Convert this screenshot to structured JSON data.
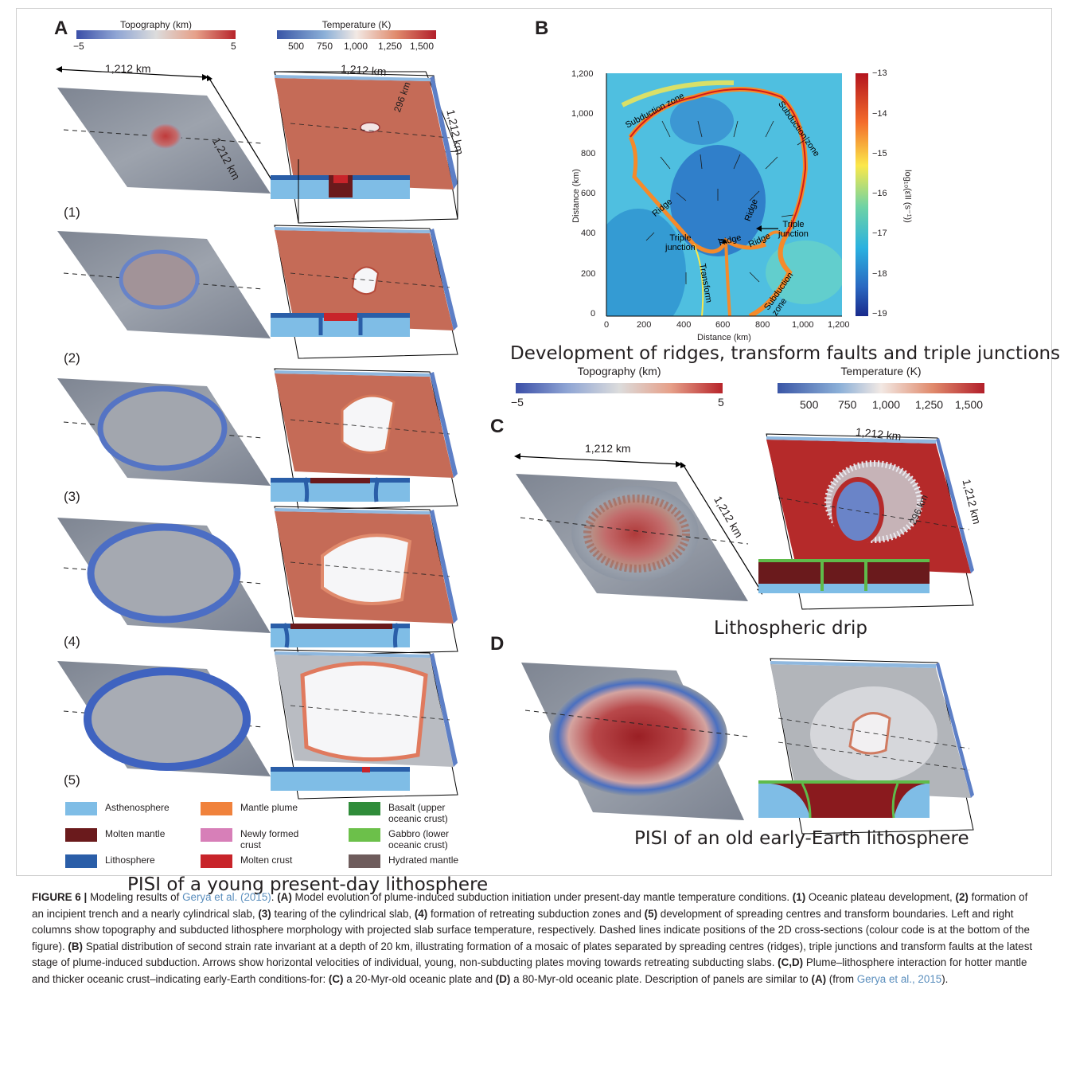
{
  "panels": {
    "A": {
      "letter": "A",
      "topo_bar": {
        "title": "Topography (km)",
        "min_label": "−5",
        "max_label": "5"
      },
      "temp_bar": {
        "title": "Temperature (K)",
        "ticks": [
          "500",
          "750",
          "1,000",
          "1,250",
          "1,500"
        ]
      },
      "dim_width": "1,212 km",
      "dim_depth": "1,212 km",
      "box_dim_width": "1,212 km",
      "box_dim_depth": "1,212 km",
      "box_dim_height": "296 km",
      "stages": [
        "(1)",
        "(2)",
        "(3)",
        "(4)",
        "(5)"
      ],
      "caption": "PISI of a young present-day lithosphere"
    },
    "B": {
      "letter": "B",
      "y_axis_label": "Distance (km)",
      "x_axis_label": "Distance (km)",
      "x_ticks": [
        "0",
        "200",
        "400",
        "600",
        "800",
        "1,000",
        "1,200"
      ],
      "y_ticks": [
        "0",
        "200",
        "400",
        "600",
        "800",
        "1,000",
        "1,200"
      ],
      "colorbar_ticks": [
        "−13",
        "−14",
        "−15",
        "−16",
        "−17",
        "−18",
        "−19"
      ],
      "colorbar_label": "log₁₀(ε̇II (s⁻¹))",
      "annotations": {
        "subduction_nw": "Subduction zone",
        "subduction_ne": "Subduction zone",
        "ridge_w": "Ridge",
        "ridge_e": "Ridge",
        "ridge_c1": "Ridge",
        "ridge_c2": "Ridge",
        "triple_1": "Triple\njunction",
        "triple_2": "Triple\njunction",
        "transform": "Transform",
        "subduction_s": "Subduction\nzone"
      },
      "caption": "Development of ridges, transform faults and triple junctions"
    },
    "C": {
      "letter": "C",
      "topo_bar": {
        "title": "Topography (km)",
        "min_label": "−5",
        "max_label": "5"
      },
      "temp_bar": {
        "title": "Temperature (K)",
        "ticks": [
          "500",
          "750",
          "1,000",
          "1,250",
          "1,500"
        ]
      },
      "dim_width": "1,212 km",
      "dim_depth": "1,212 km",
      "box_dim_width": "1,212 km",
      "box_dim_depth": "1,212 km",
      "box_dim_height": "296 km",
      "caption": "Lithospheric drip"
    },
    "D": {
      "letter": "D",
      "caption": "PISI of an old early-Earth lithosphere"
    }
  },
  "legend": [
    {
      "label": "Asthenosphere",
      "color": "#7fbde6"
    },
    {
      "label": "Mantle plume",
      "color": "#f0823c"
    },
    {
      "label": "Basalt (upper oceanic crust)",
      "color": "#2f8c3a"
    },
    {
      "label": "Molten mantle",
      "color": "#6a1a1c"
    },
    {
      "label": "Newly formed crust",
      "color": "#d77fb8"
    },
    {
      "label": "Gabbro (lower oceanic crust)",
      "color": "#6cc04a"
    },
    {
      "label": "Lithosphere",
      "color": "#2a5ea8"
    },
    {
      "label": "Molten crust",
      "color": "#c8242a"
    },
    {
      "label": "Hydrated mantle",
      "color": "#6e5c5c"
    }
  ],
  "figure_caption": {
    "label": "FIGURE 6 |",
    "t1": " Modeling results of ",
    "ref1": "Gerya et al. (2015)",
    "t2": ". ",
    "a": "(A)",
    "t3": " Model evolution of plume-induced subduction initiation under present-day mantle temperature conditions. ",
    "s1": "(1)",
    "t4": " Oceanic plateau development, ",
    "s2": "(2)",
    "t5": " formation of an incipient trench and a nearly cylindrical slab, ",
    "s3": "(3)",
    "t6": " tearing of the cylindrical slab, ",
    "s4": "(4)",
    "t7": " formation of retreating subduction zones and ",
    "s5": "(5)",
    "t8": " development of spreading centres and transform boundaries. Left and right columns show topography and subducted lithosphere morphology with projected slab surface temperature, respectively. Dashed lines indicate positions of the 2D cross-sections (colour code is at the bottom of the figure). ",
    "b": "(B)",
    "t9": " Spatial distribution of second strain rate invariant at a depth of 20 km, illustrating formation of a mosaic of plates separated by spreading centres (ridges), triple junctions and transform faults at the latest stage of plume-induced subduction. Arrows show horizontal velocities of individual, young, non-subducting plates moving towards retreating subducting slabs. ",
    "cd": "(C,D)",
    "t10": " Plume–lithosphere interaction for hotter mantle and thicker oceanic crust–indicating early-Earth conditions-for: ",
    "c": "(C)",
    "t11": " a 20-Myr-old oceanic plate and ",
    "d": "(D)",
    "t12": " a 80-Myr-old oceanic plate. Description of panels are similar to ",
    "a2": "(A)",
    "t13": " (from ",
    "ref2": "Gerya et al., 2015",
    "t14": ")."
  }
}
